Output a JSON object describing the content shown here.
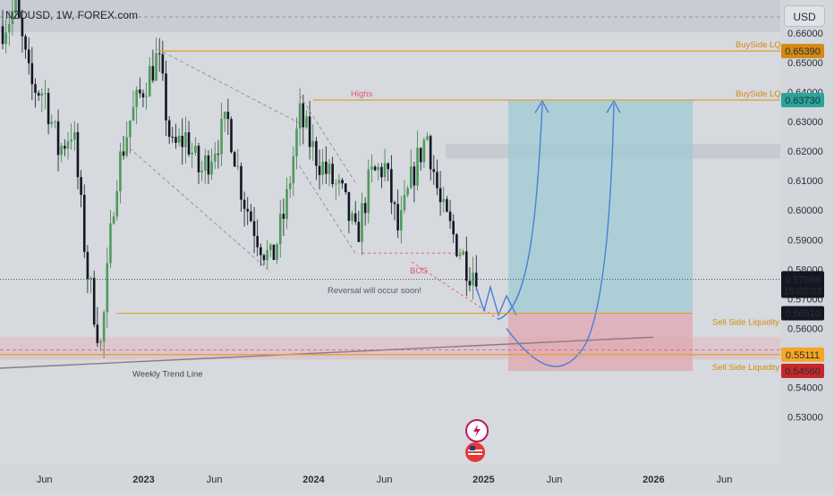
{
  "header": {
    "symbol": "NZDUSD, 1W, FOREX.com",
    "currency": "USD"
  },
  "chart_data": {
    "type": "candlestick",
    "symbol": "NZDUSD",
    "interval": "1W",
    "ylim": [
      0.52,
      0.668
    ],
    "y_ticks": [
      0.53,
      0.54,
      0.55,
      0.56,
      0.57,
      0.58,
      0.59,
      0.6,
      0.61,
      0.62,
      0.63,
      0.64,
      0.65,
      0.66
    ],
    "y_tick_labels": [
      "0.53000",
      "0.54000",
      "0.55000",
      "0.56000",
      "0.57000",
      "0.58000",
      "0.59000",
      "0.60000",
      "0.61000",
      "0.62000",
      "0.63000",
      "0.64000",
      "0.65000",
      "0.66000"
    ],
    "x_ticks": [
      "2022-06",
      "2023-01",
      "2023-06",
      "2024-01",
      "2024-06",
      "2025-01",
      "2025-06",
      "2026-01",
      "2026-06"
    ],
    "x_tick_labels": [
      "Jun",
      "2023",
      "Jun",
      "2024",
      "Jun",
      "2025",
      "Jun",
      "2026",
      "Jun"
    ],
    "x_tick_bold": [
      false,
      true,
      false,
      true,
      false,
      true,
      false,
      true,
      false
    ],
    "price_path": [
      [
        "2022-03",
        0.662
      ],
      [
        "2022-04",
        0.668
      ],
      [
        "2022-05",
        0.642
      ],
      [
        "2022-06",
        0.64
      ],
      [
        "2022-07",
        0.62
      ],
      [
        "2022-08",
        0.628
      ],
      [
        "2022-09",
        0.58
      ],
      [
        "2022-10",
        0.553
      ],
      [
        "2022-11",
        0.61
      ],
      [
        "2022-12",
        0.63
      ],
      [
        "2023-01",
        0.642
      ],
      [
        "2023-02",
        0.652
      ],
      [
        "2023-03",
        0.62
      ],
      [
        "2023-04",
        0.625
      ],
      [
        "2023-05",
        0.612
      ],
      [
        "2023-06",
        0.622
      ],
      [
        "2023-07",
        0.63
      ],
      [
        "2023-08",
        0.605
      ],
      [
        "2023-09",
        0.592
      ],
      [
        "2023-10",
        0.582
      ],
      [
        "2023-11",
        0.6
      ],
      [
        "2023-12",
        0.632
      ],
      [
        "2024-01",
        0.62
      ],
      [
        "2024-02",
        0.612
      ],
      [
        "2024-03",
        0.605
      ],
      [
        "2024-04",
        0.59
      ],
      [
        "2024-05",
        0.611
      ],
      [
        "2024-06",
        0.615
      ],
      [
        "2024-07",
        0.592
      ],
      [
        "2024-08",
        0.612
      ],
      [
        "2024-09",
        0.626
      ],
      [
        "2024-10",
        0.6
      ],
      [
        "2024-11",
        0.59
      ],
      [
        "2024-12",
        0.58
      ]
    ],
    "levels": [
      {
        "label": "BuySide LQ",
        "price": 0.6539,
        "tag": "0.65390",
        "color": "#e0a02a"
      },
      {
        "label": "BuySide LQ",
        "price": 0.6373,
        "tag": "0.63730",
        "color": "#26a69a"
      },
      {
        "label": "Sell Side Liquidity",
        "price": 0.5651,
        "tag": "0.56510",
        "color": "#131722"
      },
      {
        "label": "Sell Side Liquidity",
        "price": 0.55111,
        "tag": "0.55111",
        "color": "#f5a623"
      }
    ],
    "price_tags": [
      {
        "price": 0.57666,
        "text": "0.57666",
        "sub": "15:02:07",
        "color": "#131722"
      },
      {
        "price": 0.5456,
        "text": "0.54560",
        "color": "#c62828"
      }
    ],
    "annotations": {
      "highs": "Highs",
      "bos": "BOS",
      "reversal": "Reversal will occur soon!",
      "trendline": "Weekly Trend Line"
    },
    "grid": false,
    "legend": "none"
  }
}
